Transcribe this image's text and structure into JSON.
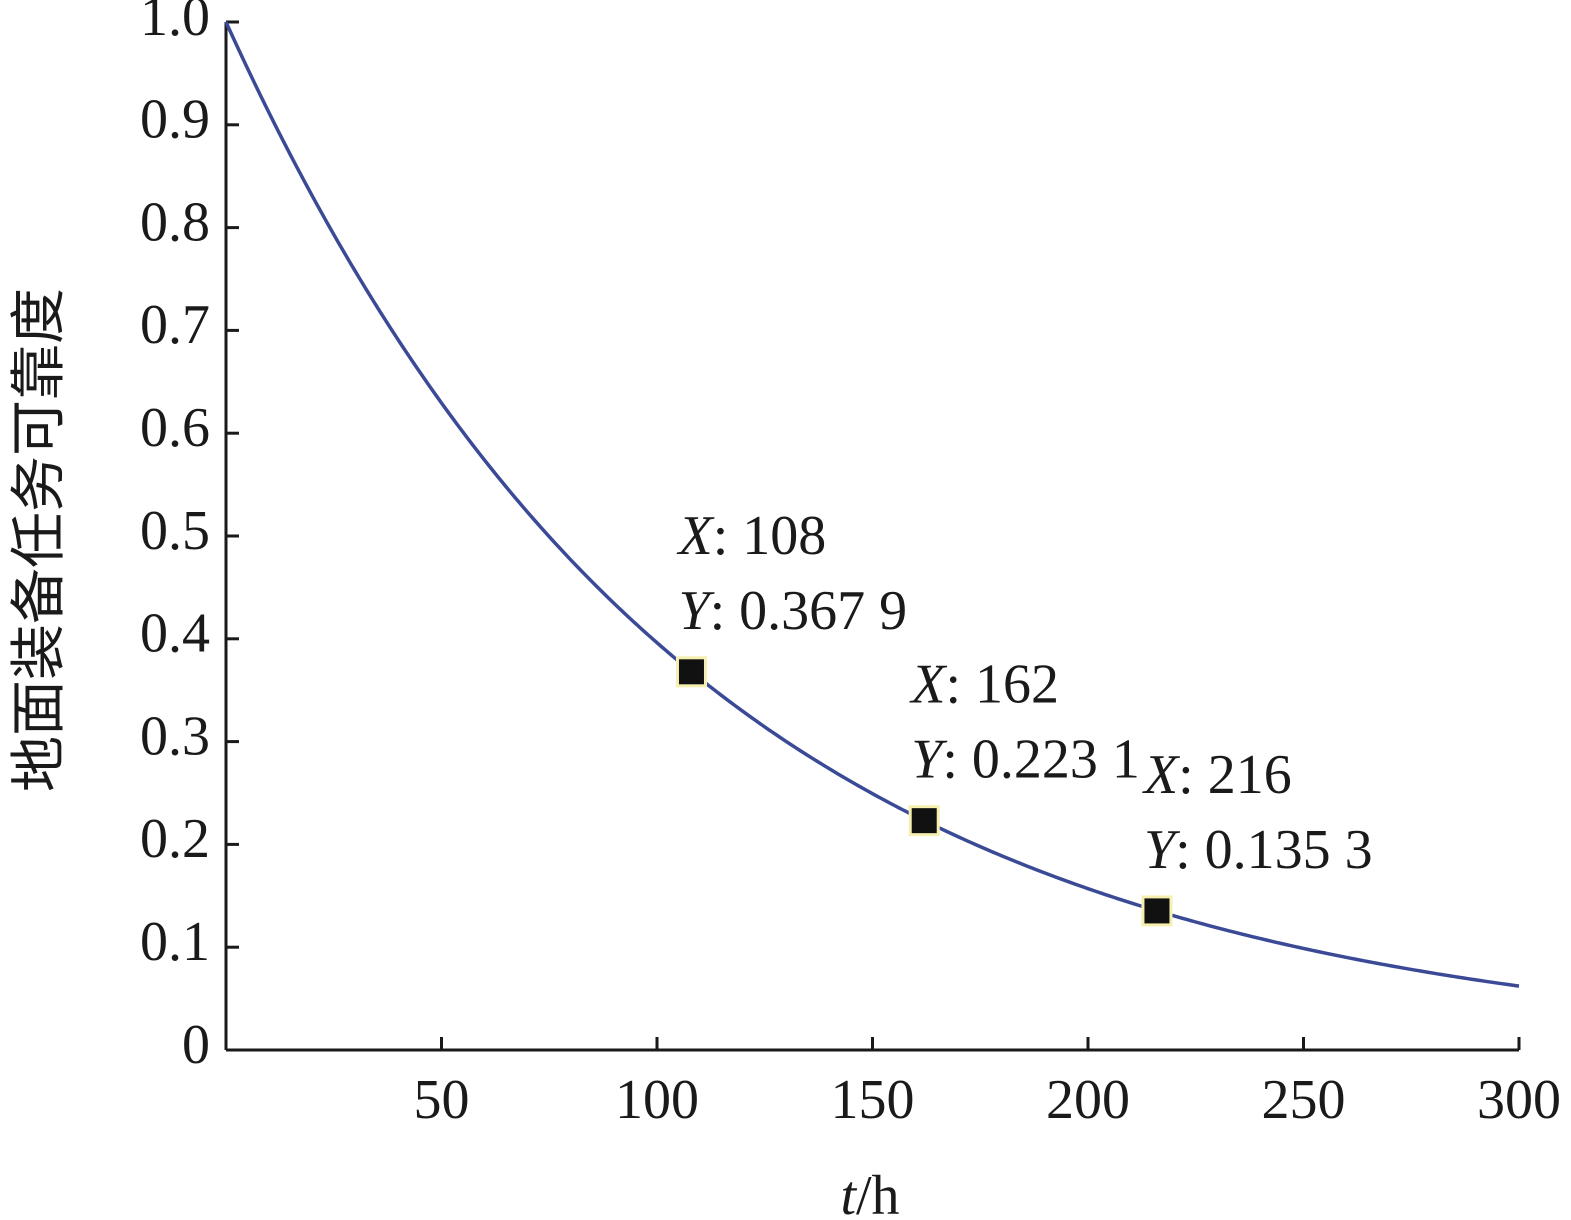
{
  "chart_data": {
    "type": "line",
    "xlabel_var": "t",
    "xlabel_unit": "/h",
    "ylabel": "地面装备任务可靠度",
    "xlim": [
      0,
      300
    ],
    "ylim": [
      0,
      1.0
    ],
    "xticks": [
      50,
      100,
      150,
      200,
      250,
      300
    ],
    "xtick_labels": [
      "50",
      "100",
      "150",
      "200",
      "250",
      "300"
    ],
    "yticks": [
      0,
      0.1,
      0.2,
      0.3,
      0.4,
      0.5,
      0.6,
      0.7,
      0.8,
      0.9,
      1.0
    ],
    "ytick_labels": [
      "0",
      "0.1",
      "0.2",
      "0.3",
      "0.4",
      "0.5",
      "0.6",
      "0.7",
      "0.8",
      "0.9",
      "1.0"
    ],
    "grid": false,
    "line_color": "#3b4a96",
    "marker_color": "#111111",
    "marker_outline": "#f5f0b0",
    "series": [
      {
        "function": "exp",
        "mtbf": 108,
        "x": [
          0,
          25,
          50,
          75,
          100,
          108,
          125,
          150,
          162,
          175,
          200,
          216,
          225,
          250,
          275,
          300
        ],
        "y": [
          1.0,
          0.7933,
          0.6294,
          0.4994,
          0.3962,
          0.3679,
          0.3143,
          0.2494,
          0.2231,
          0.1979,
          0.157,
          0.1353,
          0.1245,
          0.0988,
          0.0784,
          0.0622
        ]
      }
    ],
    "annotations": [
      {
        "x": 108,
        "y": 0.3679,
        "x_prefix": "X",
        "x_text": ": 108",
        "y_prefix": "Y",
        "y_text": ": 0.367 9"
      },
      {
        "x": 162,
        "y": 0.2231,
        "x_prefix": "X",
        "x_text": ": 162",
        "y_prefix": "Y",
        "y_text": ": 0.223 1"
      },
      {
        "x": 216,
        "y": 0.1353,
        "x_prefix": "X",
        "x_text": ": 216",
        "y_prefix": "Y",
        "y_text": ": 0.135 3"
      }
    ]
  }
}
